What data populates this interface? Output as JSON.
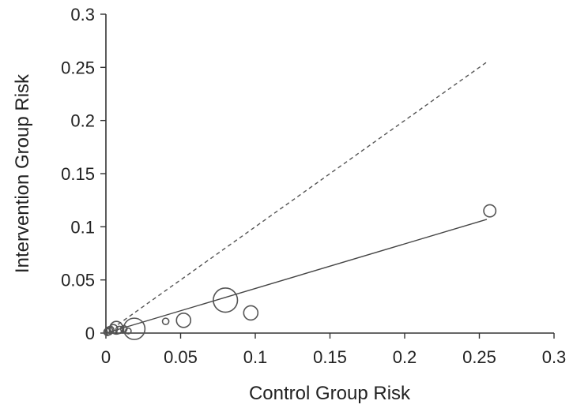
{
  "chart_data": {
    "type": "scatter",
    "xlabel": "Control Group Risk",
    "ylabel": "Intervention Group Risk",
    "xlim": [
      0,
      0.3
    ],
    "ylim": [
      0,
      0.3
    ],
    "x_ticks": [
      "0",
      "0.05",
      "0.1",
      "0.15",
      "0.2",
      "0.25",
      "0.3"
    ],
    "y_ticks": [
      "0",
      "0.05",
      "0.1",
      "0.15",
      "0.2",
      "0.25",
      "0.3"
    ],
    "grid": false,
    "legend": "none",
    "points": [
      {
        "x": 0.001,
        "y": 0.001,
        "weight": 1.0
      },
      {
        "x": 0.002,
        "y": 0.002,
        "weight": 1.1
      },
      {
        "x": 0.003,
        "y": 0.003,
        "weight": 1.0
      },
      {
        "x": 0.005,
        "y": 0.004,
        "weight": 1.2
      },
      {
        "x": 0.007,
        "y": 0.005,
        "weight": 1.8
      },
      {
        "x": 0.009,
        "y": 0.003,
        "weight": 1.0
      },
      {
        "x": 0.012,
        "y": 0.004,
        "weight": 0.9
      },
      {
        "x": 0.015,
        "y": 0.002,
        "weight": 0.8
      },
      {
        "x": 0.019,
        "y": 0.004,
        "weight": 3.0
      },
      {
        "x": 0.04,
        "y": 0.011,
        "weight": 0.9
      },
      {
        "x": 0.052,
        "y": 0.012,
        "weight": 2.0
      },
      {
        "x": 0.08,
        "y": 0.031,
        "weight": 3.4
      },
      {
        "x": 0.097,
        "y": 0.019,
        "weight": 2.0
      },
      {
        "x": 0.257,
        "y": 0.115,
        "weight": 1.7
      }
    ],
    "regression_line": {
      "x": [
        0,
        0.255
      ],
      "y": [
        0,
        0.107
      ]
    },
    "reference_line": {
      "x": [
        0.008,
        0.255
      ],
      "y": [
        0.008,
        0.255
      ],
      "style": "dashed"
    },
    "colors": {
      "axis": "#333333",
      "marker": "#555555",
      "lines": "#444444"
    }
  }
}
